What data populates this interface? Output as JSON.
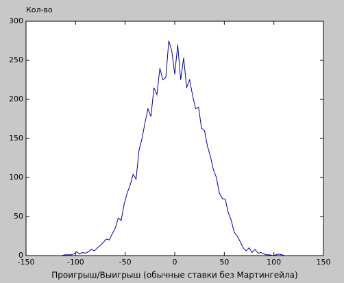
{
  "chart_data": {
    "type": "line",
    "ylabel": "Кол-во",
    "xlabel": "Проигрыш/Выигрыш (обычные ставки без Мартингейла)",
    "xlim": [
      -150,
      150
    ],
    "xticks": [
      -150,
      -100,
      -50,
      0,
      50,
      100,
      150
    ],
    "ylim": [
      0,
      300
    ],
    "yticks": [
      0,
      50,
      100,
      150,
      200,
      250,
      300
    ],
    "grid": false,
    "x": [
      -123,
      -120,
      -117,
      -114,
      -111,
      -108,
      -105,
      -102,
      -99,
      -96,
      -93,
      -90,
      -87,
      -84,
      -81,
      -78,
      -75,
      -72,
      -69,
      -66,
      -63,
      -60,
      -57,
      -54,
      -51,
      -48,
      -45,
      -42,
      -39,
      -36,
      -33,
      -30,
      -27,
      -24,
      -21,
      -18,
      -15,
      -12,
      -9,
      -6,
      -3,
      0,
      3,
      6,
      9,
      12,
      15,
      18,
      21,
      24,
      27,
      30,
      33,
      36,
      39,
      42,
      45,
      48,
      51,
      54,
      57,
      60,
      63,
      66,
      69,
      72,
      75,
      78,
      81,
      84,
      87,
      90,
      93,
      96,
      99,
      102,
      105,
      108,
      111,
      114
    ],
    "series": [
      {
        "color": "#00008b",
        "values": [
          0,
          0,
          0,
          0,
          1,
          1,
          1,
          2,
          5,
          2,
          4,
          3,
          5,
          8,
          6,
          10,
          13,
          17,
          21,
          20,
          28,
          35,
          48,
          45,
          66,
          80,
          90,
          104,
          98,
          135,
          150,
          170,
          188,
          178,
          215,
          206,
          240,
          225,
          228,
          275,
          262,
          232,
          270,
          225,
          253,
          215,
          225,
          205,
          188,
          190,
          163,
          160,
          140,
          127,
          110,
          100,
          80,
          73,
          72,
          55,
          45,
          30,
          25,
          18,
          10,
          6,
          10,
          4,
          8,
          3,
          4,
          2,
          1,
          1,
          0,
          1,
          2,
          1,
          0,
          0
        ]
      }
    ]
  }
}
